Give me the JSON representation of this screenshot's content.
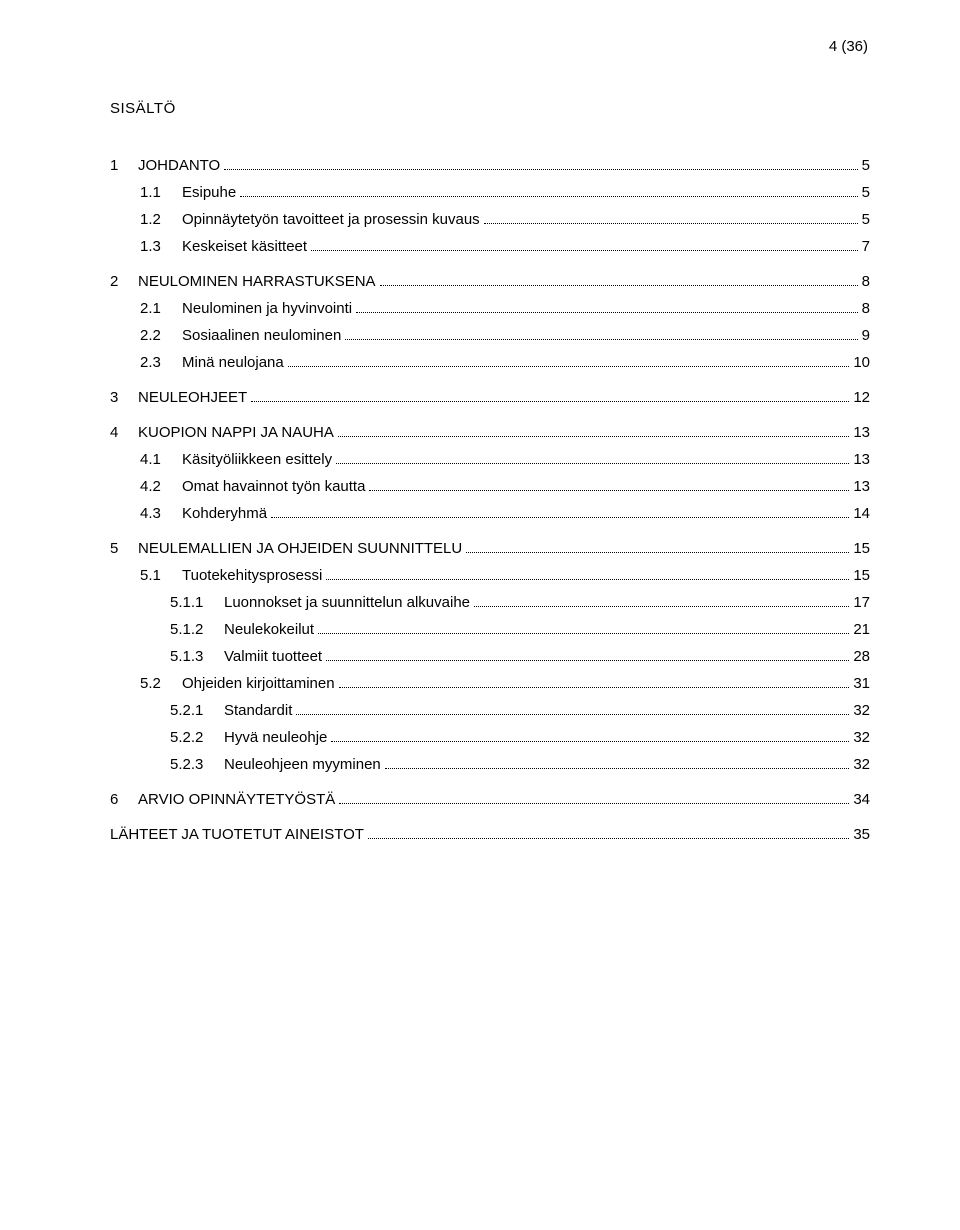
{
  "pageNumber": "4 (36)",
  "heading": "SISÄLTÖ",
  "entries": [
    {
      "level": 1,
      "num": "1",
      "title": "JOHDANTO",
      "page": "5"
    },
    {
      "level": 2,
      "num": "1.1",
      "title": "Esipuhe",
      "page": "5"
    },
    {
      "level": 2,
      "num": "1.2",
      "title": "Opinnäytetyön tavoitteet ja prosessin kuvaus",
      "page": "5"
    },
    {
      "level": 2,
      "num": "1.3",
      "title": "Keskeiset käsitteet",
      "page": "7"
    },
    {
      "level": 1,
      "num": "2",
      "title": "NEULOMINEN HARRASTUKSENA",
      "page": "8"
    },
    {
      "level": 2,
      "num": "2.1",
      "title": "Neulominen ja hyvinvointi",
      "page": "8"
    },
    {
      "level": 2,
      "num": "2.2",
      "title": "Sosiaalinen neulominen",
      "page": "9"
    },
    {
      "level": 2,
      "num": "2.3",
      "title": "Minä neulojana",
      "page": "10"
    },
    {
      "level": 1,
      "num": "3",
      "title": "NEULEOHJEET",
      "page": "12"
    },
    {
      "level": 1,
      "num": "4",
      "title": "KUOPION NAPPI JA NAUHA",
      "page": "13"
    },
    {
      "level": 2,
      "num": "4.1",
      "title": "Käsityöliikkeen esittely",
      "page": "13"
    },
    {
      "level": 2,
      "num": "4.2",
      "title": "Omat havainnot työn kautta",
      "page": "13"
    },
    {
      "level": 2,
      "num": "4.3",
      "title": "Kohderyhmä",
      "page": "14"
    },
    {
      "level": 1,
      "num": "5",
      "title": "NEULEMALLIEN JA OHJEIDEN SUUNNITTELU",
      "page": "15"
    },
    {
      "level": 2,
      "num": "5.1",
      "title": "Tuotekehitysprosessi",
      "page": "15"
    },
    {
      "level": 3,
      "num": "5.1.1",
      "title": "Luonnokset ja suunnittelun alkuvaihe",
      "page": "17"
    },
    {
      "level": 3,
      "num": "5.1.2",
      "title": "Neulekokeilut",
      "page": "21"
    },
    {
      "level": 3,
      "num": "5.1.3",
      "title": "Valmiit tuotteet",
      "page": "28"
    },
    {
      "level": 2,
      "num": "5.2",
      "title": "Ohjeiden kirjoittaminen",
      "page": "31"
    },
    {
      "level": 3,
      "num": "5.2.1",
      "title": "Standardit",
      "page": "32"
    },
    {
      "level": 3,
      "num": "5.2.2",
      "title": "Hyvä neuleohje",
      "page": "32"
    },
    {
      "level": 3,
      "num": "5.2.3",
      "title": "Neuleohjeen myyminen",
      "page": "32"
    },
    {
      "level": 1,
      "num": "6",
      "title": "ARVIO OPINNÄYTETYÖSTÄ",
      "page": "34"
    },
    {
      "level": 1,
      "num": "",
      "title": "LÄHTEET JA TUOTETUT AINEISTOT",
      "page": "35"
    }
  ]
}
